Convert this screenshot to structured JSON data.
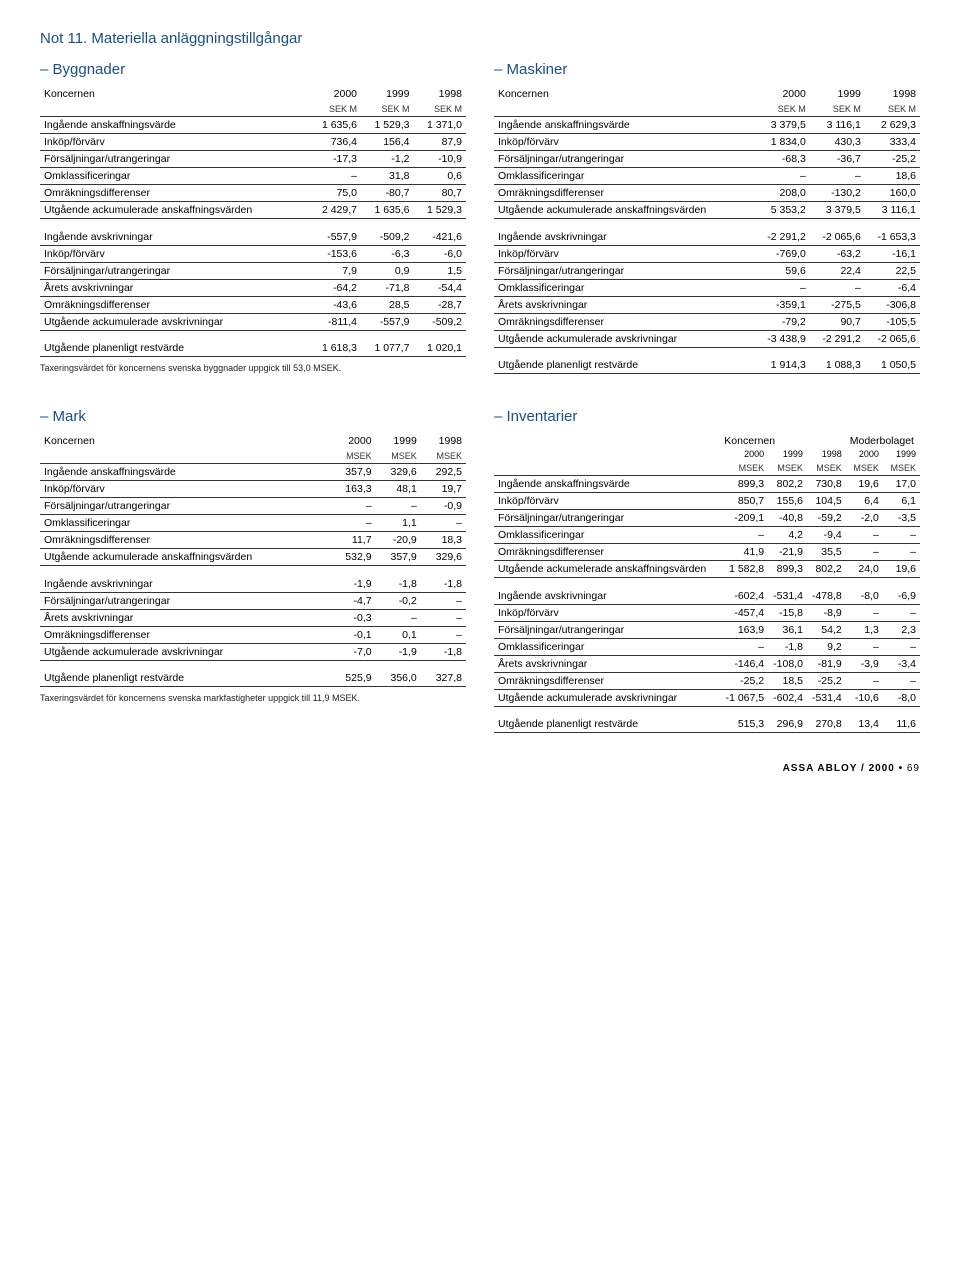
{
  "note_title": "Not 11. Materiella anläggningstillgångar",
  "sections": {
    "byggnader": {
      "title": "– Byggnader",
      "header_main": "Koncernen",
      "years": [
        "2000",
        "1999",
        "1998"
      ],
      "units": [
        "SEK M",
        "SEK M",
        "SEK M"
      ],
      "rows1": [
        [
          "Ingående anskaffningsvärde",
          "1 635,6",
          "1 529,3",
          "1 371,0"
        ],
        [
          "Inköp/förvärv",
          "736,4",
          "156,4",
          "87,9"
        ],
        [
          "Försäljningar/utrangeringar",
          "-17,3",
          "-1,2",
          "-10,9"
        ],
        [
          "Omklassificeringar",
          "–",
          "31,8",
          "0,6"
        ],
        [
          "Omräkningsdifferenser",
          "75,0",
          "-80,7",
          "80,7"
        ],
        [
          "Utgående ackumulerade anskaffningsvärden",
          "2 429,7",
          "1 635,6",
          "1 529,3"
        ]
      ],
      "rows2": [
        [
          "Ingående avskrivningar",
          "-557,9",
          "-509,2",
          "-421,6"
        ],
        [
          "Inköp/förvärv",
          "-153,6",
          "-6,3",
          "-6,0"
        ],
        [
          "Försäljningar/utrangeringar",
          "7,9",
          "0,9",
          "1,5"
        ],
        [
          "Årets avskrivningar",
          "-64,2",
          "-71,8",
          "-54,4"
        ],
        [
          "Omräkningsdifferenser",
          "-43,6",
          "28,5",
          "-28,7"
        ],
        [
          "Utgående ackumulerade avskrivningar",
          "-811,4",
          "-557,9",
          "-509,2"
        ]
      ],
      "rows3": [
        [
          "Utgående planenligt restvärde",
          "1 618,3",
          "1 077,7",
          "1 020,1"
        ]
      ],
      "footnote": "Taxeringsvärdet för koncernens svenska byggnader uppgick till 53,0 MSEK."
    },
    "maskiner": {
      "title": "– Maskiner",
      "header_main": "Koncernen",
      "years": [
        "2000",
        "1999",
        "1998"
      ],
      "units": [
        "SEK M",
        "SEK M",
        "SEK M"
      ],
      "rows1": [
        [
          "Ingående anskaffningsvärde",
          "3 379,5",
          "3 116,1",
          "2 629,3"
        ],
        [
          "Inköp/förvärv",
          "1 834,0",
          "430,3",
          "333,4"
        ],
        [
          "Försäljningar/utrangeringar",
          "-68,3",
          "-36,7",
          "-25,2"
        ],
        [
          "Omklassificeringar",
          "–",
          "–",
          "18,6"
        ],
        [
          "Omräkningsdifferenser",
          "208,0",
          "-130,2",
          "160,0"
        ],
        [
          "Utgående ackumulerade anskaffningsvärden",
          "5 353,2",
          "3 379,5",
          "3 116,1"
        ]
      ],
      "rows2": [
        [
          "Ingående avskrivningar",
          "-2 291,2",
          "-2 065,6",
          "-1 653,3"
        ],
        [
          "Inköp/förvärv",
          "-769,0",
          "-63,2",
          "-16,1"
        ],
        [
          "Försäljningar/utrangeringar",
          "59,6",
          "22,4",
          "22,5"
        ],
        [
          "Omklassificeringar",
          "–",
          "–",
          "-6,4"
        ],
        [
          "Årets avskrivningar",
          "-359,1",
          "-275,5",
          "-306,8"
        ],
        [
          "Omräkningsdifferenser",
          "-79,2",
          "90,7",
          "-105,5"
        ],
        [
          "Utgående ackumulerade avskrivningar",
          "-3 438,9",
          "-2 291,2",
          "-2 065,6"
        ]
      ],
      "rows3": [
        [
          "Utgående planenligt restvärde",
          "1 914,3",
          "1 088,3",
          "1 050,5"
        ]
      ]
    },
    "mark": {
      "title": "– Mark",
      "header_main": "Koncernen",
      "years": [
        "2000",
        "1999",
        "1998"
      ],
      "units": [
        "MSEK",
        "MSEK",
        "MSEK"
      ],
      "rows1": [
        [
          "Ingående anskaffningsvärde",
          "357,9",
          "329,6",
          "292,5"
        ],
        [
          "Inköp/förvärv",
          "163,3",
          "48,1",
          "19,7"
        ],
        [
          "Försäljningar/utrangeringar",
          "–",
          "–",
          "-0,9"
        ],
        [
          "Omklassificeringar",
          "–",
          "1,1",
          "–"
        ],
        [
          "Omräkningsdifferenser",
          "11,7",
          "-20,9",
          "18,3"
        ],
        [
          "Utgående ackumulerade anskaffningsvärden",
          "532,9",
          "357,9",
          "329,6"
        ]
      ],
      "rows2": [
        [
          "Ingående avskrivningar",
          "-1,9",
          "-1,8",
          "-1,8"
        ],
        [
          "Försäljningar/utrangeringar",
          "-4,7",
          "-0,2",
          "–"
        ],
        [
          "Årets avskrivningar",
          "-0,3",
          "–",
          "–"
        ],
        [
          "Omräkningsdifferenser",
          "-0,1",
          "0,1",
          "–"
        ],
        [
          "Utgående ackumulerade avskrivningar",
          "-7,0",
          "-1,9",
          "-1,8"
        ]
      ],
      "rows3": [
        [
          "Utgående planenligt restvärde",
          "525,9",
          "356,0",
          "327,8"
        ]
      ],
      "footnote": "Taxeringsvärdet för koncernens svenska markfastigheter uppgick till 11,9 MSEK."
    },
    "inventarier": {
      "title": "– Inventarier",
      "group1": "Koncernen",
      "group2": "Moderbolaget",
      "years": [
        "2000",
        "1999",
        "1998",
        "2000",
        "1999"
      ],
      "units": [
        "MSEK",
        "MSEK",
        "MSEK",
        "MSEK",
        "MSEK"
      ],
      "rows1": [
        [
          "Ingående anskaffningsvärde",
          "899,3",
          "802,2",
          "730,8",
          "19,6",
          "17,0"
        ],
        [
          "Inköp/förvärv",
          "850,7",
          "155,6",
          "104,5",
          "6,4",
          "6,1"
        ],
        [
          "Försäljningar/utrangeringar",
          "-209,1",
          "-40,8",
          "-59,2",
          "-2,0",
          "-3,5"
        ],
        [
          "Omklassificeringar",
          "–",
          "4,2",
          "-9,4",
          "–",
          "–"
        ],
        [
          "Omräkningsdifferenser",
          "41,9",
          "-21,9",
          "35,5",
          "–",
          "–"
        ],
        [
          "Utgående ackumelerade anskaffningsvärden",
          "1 582,8",
          "899,3",
          "802,2",
          "24,0",
          "19,6"
        ]
      ],
      "rows2": [
        [
          "Ingående avskrivningar",
          "-602,4",
          "-531,4",
          "-478,8",
          "-8,0",
          "-6,9"
        ],
        [
          "Inköp/förvärv",
          "-457,4",
          "-15,8",
          "-8,9",
          "–",
          "–"
        ],
        [
          "Försäljningar/utrangeringar",
          "163,9",
          "36,1",
          "54,2",
          "1,3",
          "2,3"
        ],
        [
          "Omklassificeringar",
          "–",
          "-1,8",
          "9,2",
          "–",
          "–"
        ],
        [
          "Årets avskrivningar",
          "-146,4",
          "-108,0",
          "-81,9",
          "-3,9",
          "-3,4"
        ],
        [
          "Omräkningsdifferenser",
          "-25,2",
          "18,5",
          "-25,2",
          "–",
          "–"
        ],
        [
          "Utgående ackumulerade avskrivningar",
          "-1 067,5",
          "-602,4",
          "-531,4",
          "-10,6",
          "-8,0"
        ]
      ],
      "rows3": [
        [
          "Utgående planenligt restvärde",
          "515,3",
          "296,9",
          "270,8",
          "13,4",
          "11,6"
        ]
      ]
    }
  },
  "footer": {
    "brand": "ASSA ABLOY",
    "sep": " / ",
    "year": "2000",
    "dot": " • ",
    "page": "69"
  }
}
